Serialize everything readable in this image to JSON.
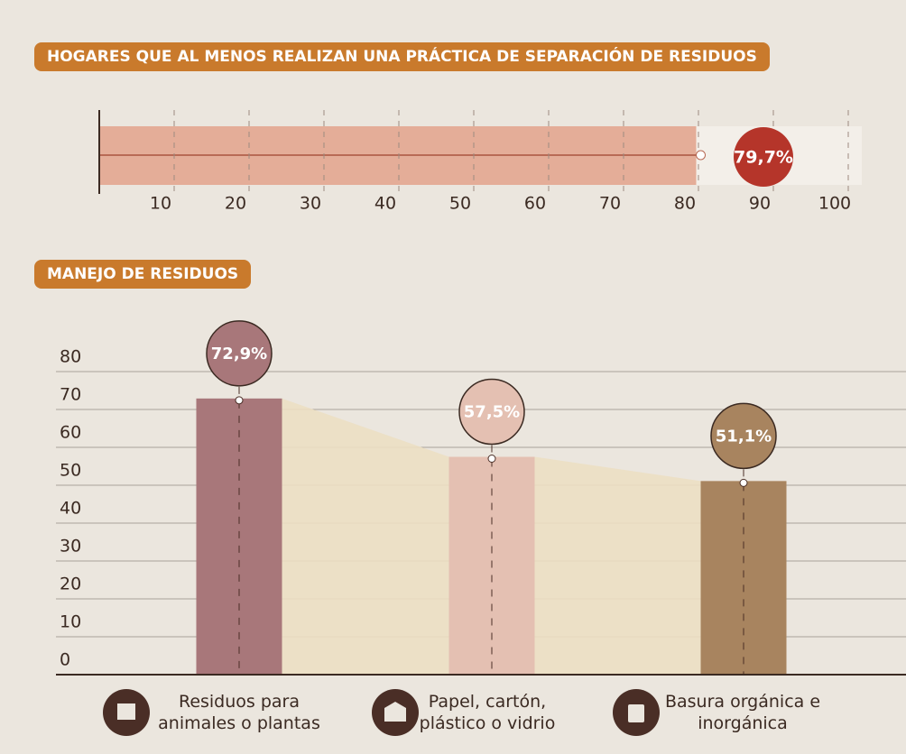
{
  "chart_data": [
    {
      "type": "bar",
      "orientation": "horizontal",
      "title": "HOGARES QUE AL MENOS REALIZAN UNA PRÁCTICA DE SEPARACIÓN DE RESIDUOS",
      "values": [
        79.7
      ],
      "value_labels": [
        "79,7%"
      ],
      "color": "#e4ad98",
      "label_color": "#b5352a",
      "xlim": [
        0,
        100
      ],
      "xticks": [
        10,
        20,
        30,
        40,
        50,
        60,
        70,
        80,
        90,
        100
      ],
      "grid": true
    },
    {
      "type": "bar",
      "title": "MANEJO DE RESIDUOS",
      "categories": [
        "Residuos para animales o plantas",
        "Papel, cartón, plástico o vidrio",
        "Basura orgánica e inorgánica"
      ],
      "values": [
        72.9,
        57.5,
        51.1
      ],
      "value_labels": [
        "72,9%",
        "57,5%",
        "51,1%"
      ],
      "colors": [
        "#a8777a",
        "#e4c0b2",
        "#a8845f"
      ],
      "ylim": [
        0,
        80
      ],
      "yticks": [
        0,
        10,
        20,
        30,
        40,
        50,
        60,
        70,
        80
      ],
      "grid": true
    }
  ]
}
